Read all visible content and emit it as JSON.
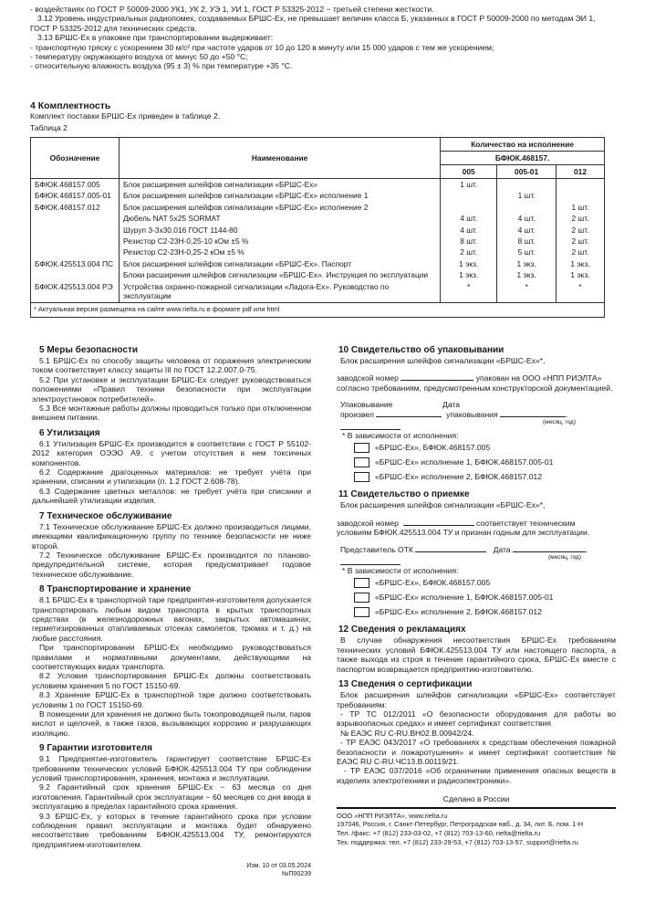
{
  "top": {
    "lines": [
      "- воздействиях по ГОСТ Р 50009-2000 УК1, УК 2, УЭ 1, УИ 1, ГОСТ Р 53325-2012 − третьей степени жесткости.",
      "3.12 Уровень индустриальных радиопомех, создаваемых БРШС-Ех, не превышает величин класса Б, указанных в ГОСТ Р 50009-2000 по методам ЭИ 1, ГОСТ Р 53325-2012 для технических средств.",
      "3.13 БРШС-Ех в упаковке при транспортировании выдерживает:",
      "- транспортную тряску с ускорением 30 м/с² при частоте ударов от 10 до 120 в минуту или 15 000 ударов с тем же ускорением;",
      "- температуру окружающего воздуха от минус 50 до +50 °С;",
      "- относительную влажность воздуха (95 ± 3) % при температуре +35 °С."
    ]
  },
  "section4": {
    "title": "4 Комплектность",
    "text": "Комплект поставки БРШС-Ех приведен в таблице 2.",
    "table_caption": "Таблица 2"
  },
  "table": {
    "headers": {
      "designation": "Обозначение",
      "name": "Наименование",
      "qty": "Количество на исполнение",
      "base": "БФЮК.468157.",
      "variants": [
        "005",
        "005-01",
        "012"
      ]
    },
    "rows": [
      {
        "designation": "БФЮК.468157.005",
        "name": "Блок расширения шлейфов сигнализации «БРШС-Ех»",
        "q": [
          "1 шт.",
          "",
          ""
        ]
      },
      {
        "designation": "БФЮК.468157.005-01",
        "name": "Блок расширения шлейфов сигнализации «БРШС-Ех» исполнение 1",
        "q": [
          "",
          "1 шт.",
          ""
        ]
      },
      {
        "designation": "БФЮК.468157.012",
        "name": "Блок расширения шлейфов сигнализации «БРШС-Ех» исполнение 2",
        "q": [
          "",
          "",
          "1 шт."
        ]
      },
      {
        "designation": "",
        "name": "Дюбель NAT 5x25 SORMAT",
        "q": [
          "4 шт.",
          "4 шт.",
          "2 шт."
        ]
      },
      {
        "designation": "",
        "name": "Шуруп 3-3х30.016 ГОСТ 1144-80",
        "q": [
          "4 шт.",
          "4 шт.",
          "2 шт."
        ]
      },
      {
        "designation": "",
        "name": "Резистор С2-23Н-0,25-10 кОм ±5 %",
        "q": [
          "8 шт.",
          "8 шт.",
          "2 шт."
        ]
      },
      {
        "designation": "",
        "name": "Резистор С2-23Н-0,25-2 кОм ±5 %",
        "q": [
          "2 шт.",
          "5 шт.",
          "2 шт."
        ]
      },
      {
        "designation": "БФЮК.425513.004 ПС",
        "name": "Блок расширения шлейфов сигнализации «БРШС-Ех». Паспорт",
        "q": [
          "1 экз.",
          "1 экз.",
          "1 экз."
        ]
      },
      {
        "designation": "",
        "name": "Блоки расширения шлейфов сигнализации «БРШС-Ех». Инструкция по эксплуатации",
        "q": [
          "1 экз.",
          "1 экз.",
          "1 экз."
        ]
      },
      {
        "designation": "БФЮК.425513.004 РЭ",
        "name": "Устройства охранно-пожарной сигнализации «Ладога-Ех». Руководство по эксплуатации",
        "q": [
          "*",
          "*",
          "*"
        ]
      }
    ],
    "note": "* Актуальная версия размещена на сайте www.rielta.ru в формате pdf или html"
  },
  "s5": {
    "title": "5 Меры безопасности",
    "p": [
      "5.1 БРШС-Ех по способу защиты человека от поражения электрическим током соответствует классу защиты III по ГОСТ 12.2.007.0-75.",
      "5.2 При установке и эксплуатации БРШС-Ех следует руководствоваться положениями «Правил техники безопасности при эксплуатации электроустановок потребителей».",
      "5.3 Все монтажные работы должны проводиться только при отключенном внешнем питании."
    ]
  },
  "s6": {
    "title": "6 Утилизация",
    "p": [
      "6.1 Утилизация БРШС-Ех производится в соответствии с ГОСТ Р 55102-2012 категория ОЭЭО А9, с учетом отсутствия в нем токсичных компонентов.",
      "6.2 Содержание драгоценных материалов: не требует учёта при хранении, списании и утилизации (п. 1.2 ГОСТ 2.608-78).",
      "6.3 Содержание цветных металлов: не требует учёта при списании и дальнейшей утилизации изделия."
    ]
  },
  "s7": {
    "title": "7 Техническое обслуживание",
    "p": [
      "7.1 Техническое обслуживание БРШС-Ех должно производиться лицами, имеющими квалификационную группу по технике безопасности не ниже второй.",
      "7.2 Техническое обслуживание БРШС-Ех производится по планово-предупредительной системе, которая предусматривает годовое техническое обслуживание."
    ]
  },
  "s8": {
    "title": "8 Транспортирование и хранение",
    "p": [
      "8.1 БРШС-Ех в транспортной таре предприятия-изготовителя допускается транспортировать любым видом транспорта в крытых транспортных средствах (в железнодорожных вагонах, закрытых автомашинах, герметизированных отапливаемых отсеках самолетов, трюмах и т. д.) на любые расстояния.",
      "При транспортировании БРШС-Ех необходимо руководствоваться правилами и нормативными документами, действующими на соответствующих видах транспорта.",
      "8.2 Условия транспортирования БРШС-Ех должны соответствовать условиям хранения 5 по ГОСТ 15150-69.",
      "8.3 Хранение БРШС-Ех в транспортной таре должно соответствовать условиям 1 по ГОСТ 15150-69.",
      "В помещении для хранения не должно быть токопроводящей пыли, паров кислот и щелочей, а также газов, вызывающих коррозию и разрушающих изоляцию."
    ]
  },
  "s9": {
    "title": "9 Гарантии изготовителя",
    "p": [
      "9.1 Предприятие-изготовитель гарантирует соответствие БРШС-Ех требованиям технических условий БФЮК.425513.004 ТУ при соблюдении условий транспортирования, хранения, монтажа и эксплуатации.",
      "9.2 Гарантийный срок хранения БРШС-Ех − 63 месяца со дня изготовления. Гарантийный срок эксплуатации − 60 месяцев со дня ввода в эксплуатацию в пределах гарантийного срока хранения.",
      "9.3 БРШС-Ех, у которых в течение гарантийного срока при условии соблюдения правил эксплуатации и монтажа будет обнаружено несоответствие требованиям БФЮК.425513.004 ТУ, ремонтируются предприятием-изготовителем."
    ]
  },
  "revision": {
    "line1": "Изм. 10 от 03.05.2024",
    "line2": "№П00239"
  },
  "s10": {
    "title": "10 Свидетельство об упаковывании",
    "intro": "Блок расширения шлейфов сигнализации «БРШС-Ех»*,",
    "serial_label": "заводской номер",
    "serial_rest": "упакован на ООО «НПП РИЭЛТА»",
    "text2": "согласно требованиям, предусмотренным конструкторской документацией.",
    "packer1": "Упаковывание",
    "packer2": "произвел",
    "date1": "Дата",
    "date2": "упаковывания",
    "date_hint": "(месяц, год)",
    "footnote": "* В зависимости от исполнения:",
    "options": [
      "«БРШС-Ех», БФЮК.468157.005",
      "«БРШС-Ех» исполнение 1, БФЮК.468157.005-01",
      "«БРШС-Ех» исполнение 2, БФЮК.468157.012"
    ]
  },
  "s11": {
    "title": "11 Свидетельство о приемке",
    "intro": "Блок расширения шлейфов сигнализации «БРШС-Ех»*,",
    "serial_label": "заводской номер",
    "serial_rest": "соответствует техническим",
    "text2": "условиям БФЮК.425513.004 ТУ и признан годным для эксплуатации.",
    "otk": "Представитель ОТК",
    "date": "Дата",
    "date_hint": "(месяц, год)",
    "footnote": "* В зависимости от исполнения:",
    "options": [
      "«БРШС-Ех», БФЮК.468157.005",
      "«БРШС-Ех» исполнение 1, БФЮК.468157.005-01",
      "«БРШС-Ех» исполнение 2, БФЮК.468157.012"
    ]
  },
  "s12": {
    "title": "12 Сведения о рекламациях",
    "p": [
      "В случае обнаружения несоответствия БРШС-Ех требованиям технических условий БФЮК.425513.004 ТУ или настоящего паспорта, а также выхода из строя в течение гарантийного срока, БРШС-Ех вместе с паспортом возвращается предприятию-изготовителю."
    ]
  },
  "s13": {
    "title": "13 Сведения о сертификации",
    "p": [
      "Блок расширения шлейфов сигнализации «БРШС-Ех» соответствует требованиям:",
      "- ТР ТС 012/2011 «О безопасности оборудования для работы во взрывоопасных средах» и имеет сертификат соответствия",
      "№ ЕАЭС RU C-RU.ВН02.В.00942/24.",
      "- ТР ЕАЭС 043/2017 «О требованиях к средствам обеспечения пожарной безопасности и пожаротушения» и имеет сертификат соответствия № ЕАЭС RU C-RU.ЧС13.В.00119/21.",
      "- ТР ЕАЭС 037/2016 «Об ограничении применения опасных веществ в изделиях электротехники и радиоэлектроники»."
    ]
  },
  "footer": {
    "made_in": "Сделано в России",
    "lines": [
      "ООО «НПП РИЭЛТА», www.rielta.ru",
      "197046, Россия, г. Санкт-Петербург, Петроградская наб., д. 34, лит. Б, пом. 1-Н",
      "Тел. /факс: +7 (812) 233-03-02, +7 (812) 703-13-60, rielta@rielta.ru",
      "Тех. поддержка: тел. +7 (812) 233-29-53, +7 (812) 703-13-57, support@rielta.ru"
    ]
  }
}
